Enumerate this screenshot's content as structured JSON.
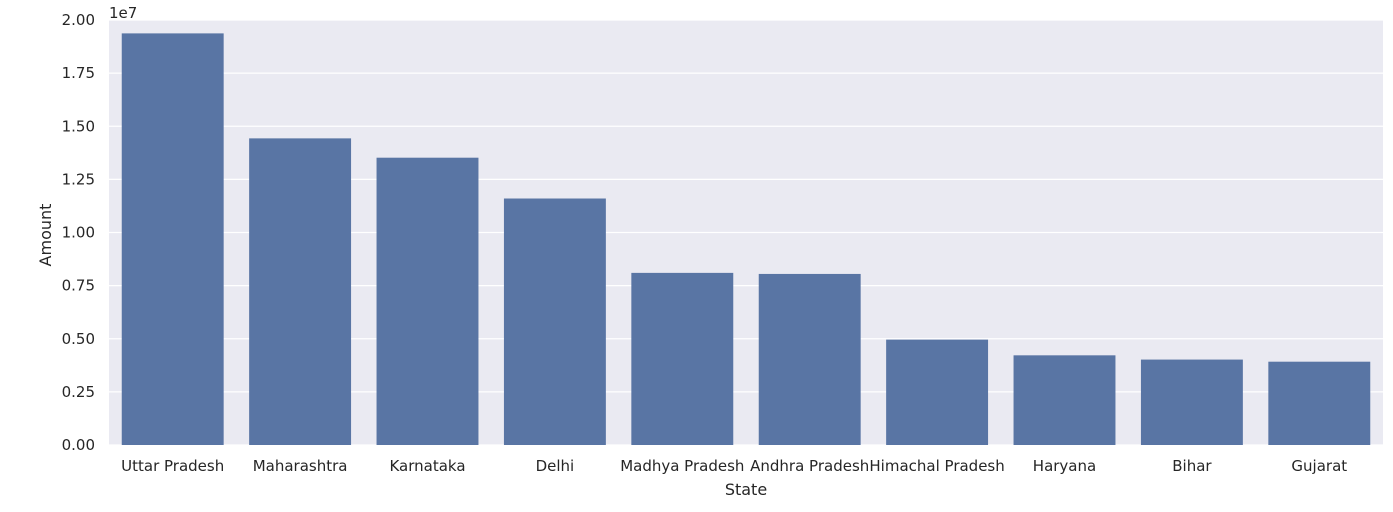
{
  "chart_data": {
    "type": "bar",
    "title": "",
    "xlabel": "State",
    "ylabel": "Amount",
    "y_offset_label": "1e7",
    "categories": [
      "Uttar Pradesh",
      "Maharashtra",
      "Karnataka",
      "Delhi",
      "Madhya Pradesh",
      "Andhra Pradesh",
      "Himachal Pradesh",
      "Haryana",
      "Bihar",
      "Gujarat"
    ],
    "values": [
      19370000,
      14430000,
      13520000,
      11600000,
      8100000,
      8050000,
      4960000,
      4220000,
      4020000,
      3920000
    ],
    "ylim": [
      0,
      20000000
    ],
    "yticks": [
      0,
      2500000,
      5000000,
      7500000,
      10000000,
      12500000,
      15000000,
      17500000,
      20000000
    ],
    "ytick_labels": [
      "0.00",
      "0.25",
      "0.50",
      "0.75",
      "1.00",
      "1.25",
      "1.50",
      "1.75",
      "2.00"
    ],
    "grid": true,
    "bar_color": "#5975a4",
    "background_color": "#eaeaf2",
    "grid_color": "#ffffff"
  }
}
